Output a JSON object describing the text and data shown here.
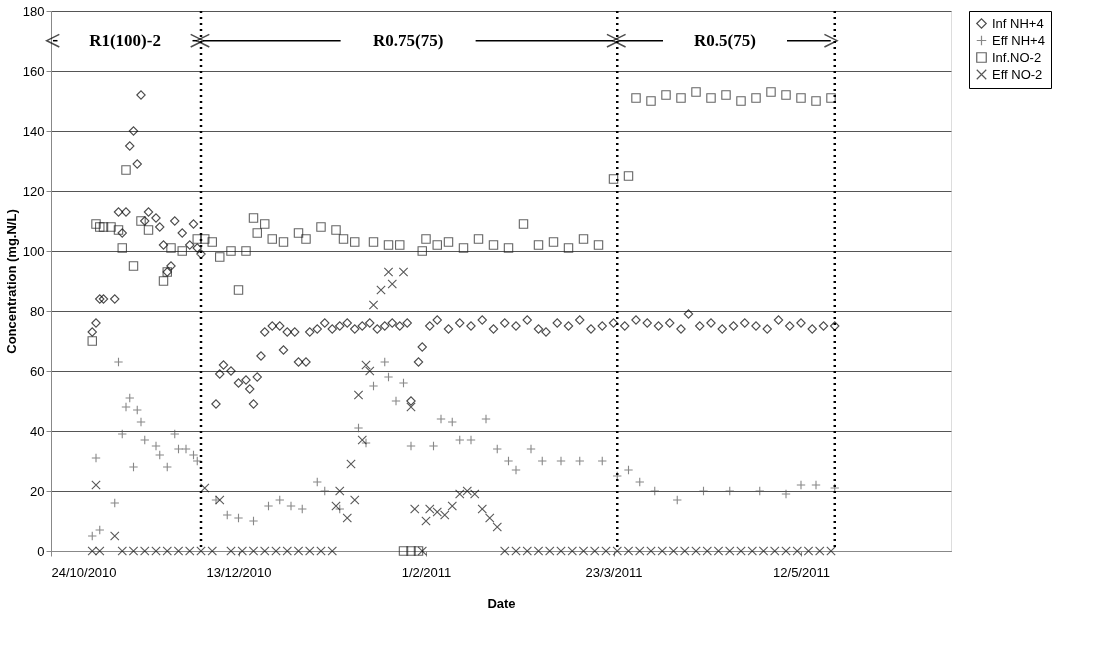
{
  "chart_data": {
    "type": "scatter",
    "xlabel": "Date",
    "ylabel": "Concentration (mg.N/L)",
    "xlim": [
      "2010-10-24",
      "2011-06-21"
    ],
    "ylim": [
      0,
      180
    ],
    "yticks": [
      0,
      20,
      40,
      60,
      80,
      100,
      120,
      140,
      160,
      180
    ],
    "xticks": [
      {
        "value": "2010-10-24",
        "label": "24/10/2010"
      },
      {
        "value": "2010-12-13",
        "label": "13/12/2010"
      },
      {
        "value": "2011-02-01",
        "label": "1/2/2011"
      },
      {
        "value": "2011-03-23",
        "label": "23/3/2011"
      },
      {
        "value": "2011-05-12",
        "label": "12/5/2011"
      }
    ],
    "grid": "y",
    "legend": "right",
    "ref_lines": [
      {
        "axis": "x",
        "value": "2010-12-03",
        "color": "#000000",
        "line_style": "dotted"
      },
      {
        "axis": "x",
        "value": "2011-03-24",
        "color": "#000000",
        "line_style": "dotted"
      },
      {
        "axis": "x",
        "value": "2011-05-21",
        "color": "#000000",
        "line_style": "dotted"
      }
    ],
    "annotations": [
      "R1(100)-2",
      "R0.75(75)",
      "R0.5(75)"
    ],
    "series": [
      {
        "name": "Inf NH+4",
        "color": "#000000",
        "marker": "diamond",
        "x": [
          "2010-11-04",
          "2010-11-05",
          "2010-11-06",
          "2010-11-07",
          "2010-11-10",
          "2010-11-11",
          "2010-11-12",
          "2010-11-13",
          "2010-11-14",
          "2010-11-15",
          "2010-11-16",
          "2010-11-17",
          "2010-11-18",
          "2010-11-19",
          "2010-11-21",
          "2010-11-22",
          "2010-11-23",
          "2010-11-24",
          "2010-11-25",
          "2010-11-26",
          "2010-11-28",
          "2010-11-30",
          "2010-12-01",
          "2010-12-02",
          "2010-12-03",
          "2010-12-07",
          "2010-12-08",
          "2010-12-09",
          "2010-12-11",
          "2010-12-13",
          "2010-12-15",
          "2010-12-16",
          "2010-12-17",
          "2010-12-18",
          "2010-12-19",
          "2010-12-20",
          "2010-12-22",
          "2010-12-24",
          "2010-12-25",
          "2010-12-26",
          "2010-12-28",
          "2010-12-29",
          "2010-12-31",
          "2011-01-01",
          "2011-01-03",
          "2011-01-05",
          "2011-01-07",
          "2011-01-09",
          "2011-01-11",
          "2011-01-13",
          "2011-01-15",
          "2011-01-17",
          "2011-01-19",
          "2011-01-21",
          "2011-01-23",
          "2011-01-25",
          "2011-01-27",
          "2011-01-28",
          "2011-01-30",
          "2011-01-31",
          "2011-02-02",
          "2011-02-04",
          "2011-02-07",
          "2011-02-10",
          "2011-02-13",
          "2011-02-16",
          "2011-02-19",
          "2011-02-22",
          "2011-02-25",
          "2011-02-28",
          "2011-03-03",
          "2011-03-05",
          "2011-03-08",
          "2011-03-11",
          "2011-03-14",
          "2011-03-17",
          "2011-03-20",
          "2011-03-23",
          "2011-03-26",
          "2011-03-29",
          "2011-04-01",
          "2011-04-04",
          "2011-04-07",
          "2011-04-10",
          "2011-04-12",
          "2011-04-15",
          "2011-04-18",
          "2011-04-21",
          "2011-04-24",
          "2011-04-27",
          "2011-04-30",
          "2011-05-03",
          "2011-05-06",
          "2011-05-09",
          "2011-05-12",
          "2011-05-15",
          "2011-05-18",
          "2011-05-21"
        ],
        "values": [
          73,
          76,
          84,
          84,
          84,
          113,
          106,
          113,
          135,
          140,
          129,
          152,
          110,
          113,
          111,
          108,
          102,
          93,
          95,
          110,
          106,
          102,
          109,
          101,
          99,
          49,
          59,
          62,
          60,
          56,
          57,
          54,
          49,
          58,
          65,
          73,
          75,
          75,
          67,
          73,
          73,
          63,
          63,
          73,
          74,
          76,
          74,
          75,
          76,
          74,
          75,
          76,
          74,
          75,
          76,
          75,
          76,
          50,
          63,
          68,
          75,
          77,
          74,
          76,
          75,
          77,
          74,
          76,
          75,
          77,
          74,
          73,
          76,
          75,
          77,
          74,
          75,
          76,
          75,
          77,
          76,
          75,
          76,
          74,
          79,
          75,
          76,
          74,
          75,
          76,
          75,
          74,
          77,
          75,
          76,
          74,
          75,
          75
        ]
      },
      {
        "name": "Eff NH+4",
        "color": "#555555",
        "marker": "plus",
        "x": [
          "2010-11-04",
          "2010-11-05",
          "2010-11-06",
          "2010-11-10",
          "2010-11-11",
          "2010-11-12",
          "2010-11-13",
          "2010-11-14",
          "2010-11-15",
          "2010-11-16",
          "2010-11-17",
          "2010-11-18",
          "2010-11-21",
          "2010-11-22",
          "2010-11-24",
          "2010-11-26",
          "2010-11-27",
          "2010-11-29",
          "2010-12-01",
          "2010-12-02",
          "2010-12-07",
          "2010-12-10",
          "2010-12-13",
          "2010-12-17",
          "2010-12-21",
          "2010-12-24",
          "2010-12-27",
          "2010-12-30",
          "2011-01-03",
          "2011-01-05",
          "2011-01-09",
          "2011-01-14",
          "2011-01-16",
          "2011-01-18",
          "2011-01-21",
          "2011-01-22",
          "2011-01-24",
          "2011-01-26",
          "2011-01-28",
          "2011-02-03",
          "2011-02-05",
          "2011-02-08",
          "2011-02-10",
          "2011-02-13",
          "2011-02-17",
          "2011-02-20",
          "2011-02-23",
          "2011-02-25",
          "2011-03-01",
          "2011-03-04",
          "2011-03-09",
          "2011-03-14",
          "2011-03-20",
          "2011-03-24",
          "2011-03-27",
          "2011-03-30",
          "2011-04-03",
          "2011-04-09",
          "2011-04-16",
          "2011-04-23",
          "2011-05-01",
          "2011-05-08",
          "2011-05-12",
          "2011-05-16",
          "2011-05-21"
        ],
        "values": [
          5,
          31,
          7,
          16,
          63,
          39,
          48,
          51,
          28,
          47,
          43,
          37,
          35,
          32,
          28,
          39,
          34,
          34,
          32,
          30,
          17,
          12,
          11,
          10,
          15,
          17,
          15,
          14,
          23,
          20,
          14,
          41,
          36,
          55,
          63,
          58,
          50,
          56,
          35,
          35,
          44,
          43,
          37,
          37,
          44,
          34,
          30,
          27,
          34,
          30,
          30,
          30,
          30,
          25,
          27,
          23,
          20,
          17,
          20,
          20,
          20,
          19,
          22,
          22,
          21
        ]
      },
      {
        "name": "Inf.NO-2",
        "color": "#222222",
        "marker": "square",
        "x": [
          "2010-11-04",
          "2010-11-05",
          "2010-11-06",
          "2010-11-07",
          "2010-11-09",
          "2010-11-11",
          "2010-11-12",
          "2010-11-13",
          "2010-11-15",
          "2010-11-17",
          "2010-11-19",
          "2010-11-23",
          "2010-11-24",
          "2010-11-25",
          "2010-11-28",
          "2010-12-02",
          "2010-12-04",
          "2010-12-06",
          "2010-12-08",
          "2010-12-11",
          "2010-12-13",
          "2010-12-15",
          "2010-12-17",
          "2010-12-18",
          "2010-12-20",
          "2010-12-22",
          "2010-12-25",
          "2010-12-29",
          "2010-12-31",
          "2011-01-04",
          "2011-01-08",
          "2011-01-10",
          "2011-01-13",
          "2011-01-18",
          "2011-01-22",
          "2011-01-25",
          "2011-01-26",
          "2011-01-28",
          "2011-01-30",
          "2011-01-31",
          "2011-02-01",
          "2011-02-04",
          "2011-02-07",
          "2011-02-11",
          "2011-02-15",
          "2011-02-19",
          "2011-02-23",
          "2011-02-27",
          "2011-03-03",
          "2011-03-07",
          "2011-03-11",
          "2011-03-15",
          "2011-03-19",
          "2011-03-23",
          "2011-03-27",
          "2011-03-29",
          "2011-04-02",
          "2011-04-06",
          "2011-04-10",
          "2011-04-14",
          "2011-04-18",
          "2011-04-22",
          "2011-04-26",
          "2011-04-30",
          "2011-05-04",
          "2011-05-08",
          "2011-05-12",
          "2011-05-16",
          "2011-05-20"
        ],
        "values": [
          70,
          109,
          108,
          108,
          108,
          107,
          101,
          127,
          95,
          110,
          107,
          90,
          93,
          101,
          100,
          104,
          104,
          103,
          98,
          100,
          87,
          100,
          111,
          106,
          109,
          104,
          103,
          106,
          104,
          108,
          107,
          104,
          103,
          103,
          102,
          102,
          0,
          0,
          0,
          100,
          104,
          102,
          103,
          101,
          104,
          102,
          101,
          109,
          102,
          103,
          101,
          104,
          102,
          124,
          125,
          151,
          150,
          152,
          151,
          153,
          151,
          152,
          150,
          151,
          153,
          152,
          151,
          150,
          151
        ]
      },
      {
        "name": "Eff NO-2",
        "color": "#111111",
        "marker": "cross",
        "x": [
          "2010-11-04",
          "2010-11-05",
          "2010-11-06",
          "2010-11-10",
          "2010-11-12",
          "2010-11-15",
          "2010-11-18",
          "2010-11-21",
          "2010-11-24",
          "2010-11-27",
          "2010-11-30",
          "2010-12-03",
          "2010-12-04",
          "2010-12-06",
          "2010-12-08",
          "2010-12-11",
          "2010-12-14",
          "2010-12-17",
          "2010-12-20",
          "2010-12-23",
          "2010-12-26",
          "2010-12-29",
          "2011-01-01",
          "2011-01-04",
          "2011-01-07",
          "2011-01-08",
          "2011-01-09",
          "2011-01-11",
          "2011-01-12",
          "2011-01-13",
          "2011-01-14",
          "2011-01-15",
          "2011-01-16",
          "2011-01-17",
          "2011-01-18",
          "2011-01-20",
          "2011-01-22",
          "2011-01-23",
          "2011-01-26",
          "2011-01-28",
          "2011-01-29",
          "2011-01-31",
          "2011-02-01",
          "2011-02-02",
          "2011-02-04",
          "2011-02-06",
          "2011-02-08",
          "2011-02-10",
          "2011-02-12",
          "2011-02-14",
          "2011-02-16",
          "2011-02-18",
          "2011-02-20",
          "2011-02-22",
          "2011-02-25",
          "2011-02-28",
          "2011-03-03",
          "2011-03-06",
          "2011-03-09",
          "2011-03-12",
          "2011-03-15",
          "2011-03-18",
          "2011-03-21",
          "2011-03-24",
          "2011-03-27",
          "2011-03-30",
          "2011-04-02",
          "2011-04-05",
          "2011-04-08",
          "2011-04-11",
          "2011-04-14",
          "2011-04-17",
          "2011-04-20",
          "2011-04-23",
          "2011-04-26",
          "2011-04-29",
          "2011-05-02",
          "2011-05-05",
          "2011-05-08",
          "2011-05-11",
          "2011-05-14",
          "2011-05-17",
          "2011-05-20"
        ],
        "values": [
          0,
          22,
          0,
          5,
          0,
          0,
          0,
          0,
          0,
          0,
          0,
          0,
          21,
          0,
          17,
          0,
          0,
          0,
          0,
          0,
          0,
          0,
          0,
          0,
          0,
          15,
          20,
          11,
          29,
          17,
          52,
          37,
          62,
          60,
          82,
          87,
          93,
          89,
          93,
          48,
          14,
          0,
          10,
          14,
          13,
          12,
          15,
          19,
          20,
          19,
          14,
          11,
          8,
          0,
          0,
          0,
          0,
          0,
          0,
          0,
          0,
          0,
          0,
          0,
          0,
          0,
          0,
          0,
          0,
          0,
          0,
          0,
          0,
          0,
          0,
          0,
          0,
          0,
          0,
          0,
          0,
          0,
          0
        ]
      }
    ]
  }
}
